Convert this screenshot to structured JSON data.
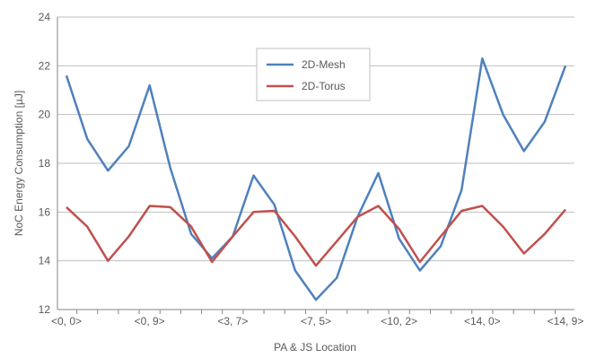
{
  "chart_data": {
    "type": "line",
    "xlabel": "PA & JS Location",
    "ylabel": "NoC Energy Consumption [µJ]",
    "ylim": [
      12,
      24
    ],
    "yticks": [
      12,
      14,
      16,
      18,
      20,
      22,
      24
    ],
    "grid": "horizontal",
    "legend": "top-center",
    "categories": [
      "<0, 0>",
      "",
      "",
      "",
      "<0, 9>",
      "",
      "",
      "",
      "<3, 7>",
      "",
      "",
      "",
      "<7, 5>",
      "",
      "",
      "",
      "<10, 2>",
      "",
      "",
      "",
      "<14, 0>",
      "",
      "",
      "",
      "<14, 9>"
    ],
    "series": [
      {
        "name": "2D-Mesh",
        "color": "#4F81BD",
        "values": [
          21.6,
          19.0,
          17.7,
          18.7,
          21.2,
          17.8,
          15.1,
          14.1,
          15.0,
          17.5,
          16.3,
          13.6,
          12.4,
          13.3,
          15.8,
          17.6,
          14.9,
          13.6,
          14.6,
          16.9,
          22.3,
          20.0,
          18.5,
          19.7,
          22.0
        ]
      },
      {
        "name": "2D-Torus",
        "color": "#C0504D",
        "values": [
          16.2,
          15.4,
          14.0,
          15.0,
          16.25,
          16.2,
          15.4,
          13.95,
          15.0,
          16.0,
          16.05,
          15.0,
          13.8,
          14.8,
          15.8,
          16.25,
          15.3,
          13.95,
          15.0,
          16.05,
          16.25,
          15.4,
          14.3,
          15.1,
          16.1
        ]
      }
    ]
  }
}
